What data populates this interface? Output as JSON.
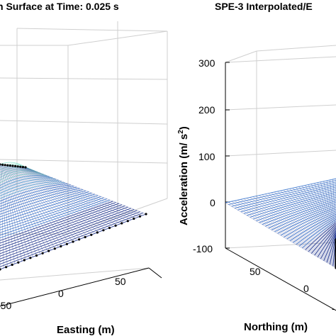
{
  "chart_data": [
    {
      "type": "surface",
      "title": "n Surface at Time: 0.025 s",
      "xlabel": "Easting (m)",
      "x_ticks": [
        "-50",
        "0",
        "50"
      ],
      "z_ticks": [],
      "colors": {
        "mesh_dark": "#1a2f8a",
        "mesh_mid": "#3a78d0",
        "mesh_light": "#8ee6d2",
        "points": "#000000",
        "grid": "#cfcfcf"
      }
    },
    {
      "type": "surface",
      "title": "SPE-3 Interpolated/E",
      "xlabel": "Northing (m)",
      "ylabel": "Acceleration (m/ s",
      "ylabel_sup": "2",
      "ylabel_end": ")",
      "z_ticks": [
        "300",
        "200",
        "100",
        "0",
        "-100"
      ],
      "zlim": [
        -100,
        300
      ],
      "y_ticks": [
        "50",
        "0",
        "-"
      ],
      "colors": {
        "mesh_dark": "#1a2f8a",
        "mesh_mid": "#3a78d0",
        "points": "#000000",
        "grid": "#cfcfcf"
      }
    }
  ]
}
